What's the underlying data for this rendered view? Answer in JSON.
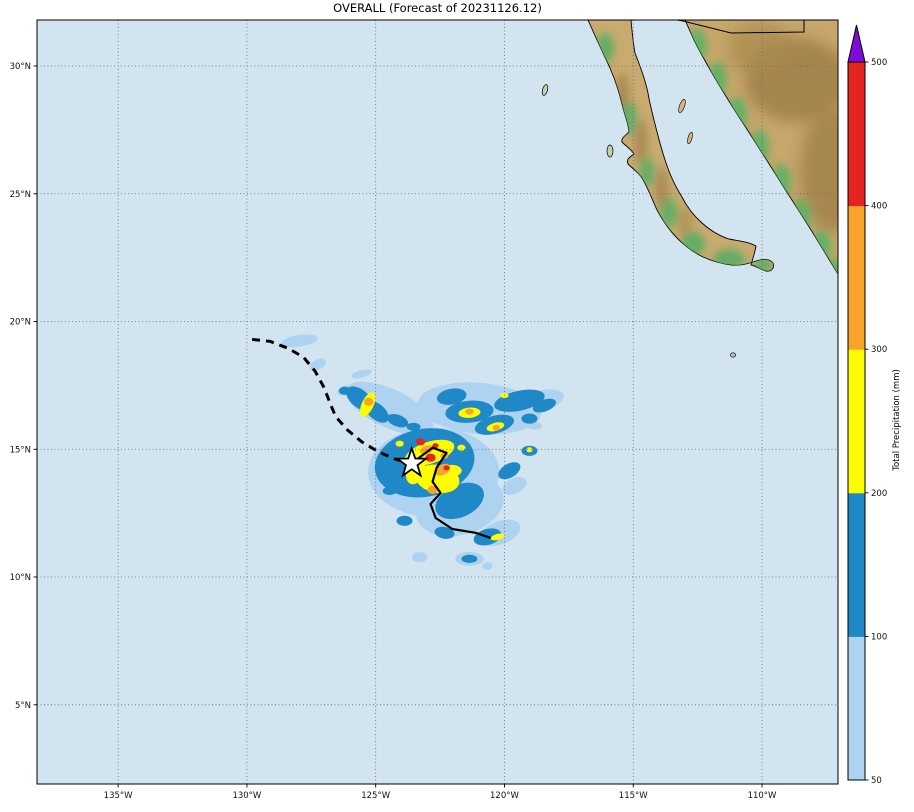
{
  "title": "OVERALL (Forecast of 20231126.12)",
  "colorbar": {
    "label": "Total Precipitation (mm)",
    "ticks": [
      "50",
      "100",
      "200",
      "300",
      "400",
      "500"
    ],
    "levels": [
      {
        "min": 50,
        "max": 100,
        "color": "#aed3f1"
      },
      {
        "min": 100,
        "max": 200,
        "color": "#1f88c7"
      },
      {
        "min": 200,
        "max": 300,
        "color": "#fdfd00"
      },
      {
        "min": 300,
        "max": 400,
        "color": "#f8a42b"
      },
      {
        "min": 400,
        "max": 500,
        "color": "#e52420"
      }
    ],
    "over_color": "#7e0cd8"
  },
  "chart_data": {
    "type": "map",
    "title": "OVERALL (Forecast of 20231126.12)",
    "projection": "lat/lon grid, eastern Pacific / Mexico",
    "extent": {
      "lon_min": -138.15,
      "lon_max": -107.05,
      "lat_min": 1.9,
      "lat_max": 31.8
    },
    "x_ticks": [
      {
        "lon": -135,
        "label": "135°W"
      },
      {
        "lon": -130,
        "label": "130°W"
      },
      {
        "lon": -125,
        "label": "125°W"
      },
      {
        "lon": -120,
        "label": "120°W"
      },
      {
        "lon": -115,
        "label": "115°W"
      },
      {
        "lon": -110,
        "label": "110°W"
      }
    ],
    "y_ticks": [
      {
        "lat": 5,
        "label": "5°N"
      },
      {
        "lat": 10,
        "label": "10°N"
      },
      {
        "lat": 15,
        "label": "15°N"
      },
      {
        "lat": 20,
        "label": "20°N"
      },
      {
        "lat": 25,
        "label": "25°N"
      },
      {
        "lat": 30,
        "label": "30°N"
      }
    ],
    "colorbar_title": "Total Precipitation (mm)",
    "precip_scale_mm": [
      50,
      100,
      200,
      300,
      400,
      500
    ],
    "storm": {
      "current_position": {
        "lon": -123.6,
        "lat": 14.45,
        "marker": "star"
      },
      "observed_track_dashed": [
        [
          -129.8,
          19.3
        ],
        [
          -129.1,
          19.22
        ],
        [
          -128.4,
          18.95
        ],
        [
          -127.8,
          18.6
        ],
        [
          -127.35,
          18.05
        ],
        [
          -127.0,
          17.4
        ],
        [
          -126.75,
          16.75
        ],
        [
          -126.55,
          16.27
        ],
        [
          -126.1,
          15.76
        ],
        [
          -125.55,
          15.3
        ],
        [
          -124.9,
          14.9
        ],
        [
          -124.2,
          14.6
        ],
        [
          -123.6,
          14.45
        ]
      ],
      "forecast_track_solid": [
        [
          -123.6,
          14.45
        ],
        [
          -122.79,
          15.06
        ],
        [
          -122.25,
          14.86
        ],
        [
          -122.64,
          14.27
        ],
        [
          -122.79,
          13.73
        ],
        [
          -122.48,
          13.29
        ],
        [
          -122.87,
          12.86
        ],
        [
          -122.67,
          12.31
        ],
        [
          -122.02,
          11.88
        ],
        [
          -121.12,
          11.73
        ],
        [
          -120.54,
          11.53
        ]
      ]
    },
    "precip_blobs": [
      {
        "level": 50,
        "lon": -127.95,
        "lat": 19.25,
        "rx": 0.7,
        "ry": 0.23,
        "rot": -8
      },
      {
        "level": 50,
        "lon": -127.25,
        "lat": 18.31,
        "rx": 0.35,
        "ry": 0.2,
        "rot": -30
      },
      {
        "level": 50,
        "lon": -125.55,
        "lat": 17.95,
        "rx": 0.4,
        "ry": 0.15,
        "rot": -15
      },
      {
        "level": 50,
        "lon": -126.2,
        "lat": 17.3,
        "rx": 0.3,
        "ry": 0.18,
        "rot": -20
      },
      {
        "level": 50,
        "lon": -124.46,
        "lat": 16.6,
        "rx": 1.85,
        "ry": 0.75,
        "rot": 25
      },
      {
        "level": 50,
        "lon": -120.97,
        "lat": 16.6,
        "rx": 2.4,
        "ry": 1.0,
        "rot": 5
      },
      {
        "level": 50,
        "lon": -118.53,
        "lat": 16.9,
        "rx": 0.85,
        "ry": 0.4,
        "rot": -15
      },
      {
        "level": 50,
        "lon": -118.84,
        "lat": 15.92,
        "rx": 0.3,
        "ry": 0.15,
        "rot": 0
      },
      {
        "level": 50,
        "lon": -122.75,
        "lat": 14.1,
        "rx": 2.55,
        "ry": 1.75,
        "rot": 0
      },
      {
        "level": 50,
        "lon": -121.74,
        "lat": 12.8,
        "rx": 1.75,
        "ry": 1.15,
        "rot": -15
      },
      {
        "level": 50,
        "lon": -119.61,
        "lat": 13.57,
        "rx": 0.5,
        "ry": 0.3,
        "rot": -25
      },
      {
        "level": 50,
        "lon": -120.19,
        "lat": 11.73,
        "rx": 0.85,
        "ry": 0.45,
        "rot": -20
      },
      {
        "level": 50,
        "lon": -121.36,
        "lat": 10.71,
        "rx": 0.55,
        "ry": 0.27,
        "rot": 0
      },
      {
        "level": 50,
        "lon": -123.29,
        "lat": 10.78,
        "rx": 0.3,
        "ry": 0.2,
        "rot": 0
      },
      {
        "level": 50,
        "lon": -120.66,
        "lat": 10.43,
        "rx": 0.2,
        "ry": 0.15,
        "rot": 0
      },
      {
        "level": 100,
        "lon": -125.62,
        "lat": 16.98,
        "rx": 0.62,
        "ry": 0.35,
        "rot": 40
      },
      {
        "level": 100,
        "lon": -124.96,
        "lat": 16.47,
        "rx": 0.55,
        "ry": 0.31,
        "rot": 40
      },
      {
        "level": 100,
        "lon": -124.15,
        "lat": 16.12,
        "rx": 0.43,
        "ry": 0.23,
        "rot": 20
      },
      {
        "level": 100,
        "lon": -123.53,
        "lat": 15.88,
        "rx": 0.27,
        "ry": 0.16,
        "rot": 0
      },
      {
        "level": 100,
        "lon": -126.2,
        "lat": 17.29,
        "rx": 0.23,
        "ry": 0.16,
        "rot": 0
      },
      {
        "level": 100,
        "lon": -122.05,
        "lat": 17.06,
        "rx": 0.58,
        "ry": 0.31,
        "rot": -10
      },
      {
        "level": 100,
        "lon": -121.36,
        "lat": 16.47,
        "rx": 0.94,
        "ry": 0.43,
        "rot": -5
      },
      {
        "level": 100,
        "lon": -120.39,
        "lat": 15.96,
        "rx": 0.78,
        "ry": 0.35,
        "rot": -15
      },
      {
        "level": 100,
        "lon": -119.42,
        "lat": 16.9,
        "rx": 1.0,
        "ry": 0.39,
        "rot": -12
      },
      {
        "level": 100,
        "lon": -118.45,
        "lat": 16.71,
        "rx": 0.47,
        "ry": 0.23,
        "rot": -20
      },
      {
        "level": 100,
        "lon": -119.03,
        "lat": 16.2,
        "rx": 0.31,
        "ry": 0.2,
        "rot": 0
      },
      {
        "level": 100,
        "lon": -123.1,
        "lat": 14.47,
        "rx": 1.95,
        "ry": 1.33,
        "rot": -10
      },
      {
        "level": 100,
        "lon": -121.74,
        "lat": 12.98,
        "rx": 1.0,
        "ry": 0.63,
        "rot": -25
      },
      {
        "level": 100,
        "lon": -120.66,
        "lat": 11.57,
        "rx": 0.55,
        "ry": 0.31,
        "rot": -15
      },
      {
        "level": 100,
        "lon": -121.36,
        "lat": 10.71,
        "rx": 0.31,
        "ry": 0.16,
        "rot": 0
      },
      {
        "level": 100,
        "lon": -122.33,
        "lat": 11.73,
        "rx": 0.39,
        "ry": 0.23,
        "rot": 10
      },
      {
        "level": 100,
        "lon": -123.88,
        "lat": 12.2,
        "rx": 0.31,
        "ry": 0.2,
        "rot": 0
      },
      {
        "level": 100,
        "lon": -124.46,
        "lat": 13.37,
        "rx": 0.27,
        "ry": 0.16,
        "rot": 0
      },
      {
        "level": 100,
        "lon": -119.81,
        "lat": 14.16,
        "rx": 0.47,
        "ry": 0.27,
        "rot": -30
      },
      {
        "level": 100,
        "lon": -119.03,
        "lat": 14.94,
        "rx": 0.31,
        "ry": 0.2,
        "rot": 0
      },
      {
        "level": 200,
        "lon": -125.31,
        "lat": 16.75,
        "rx": 0.23,
        "ry": 0.51,
        "rot": 25
      },
      {
        "level": 200,
        "lon": -121.36,
        "lat": 16.43,
        "rx": 0.43,
        "ry": 0.2,
        "rot": -5
      },
      {
        "level": 200,
        "lon": -120.35,
        "lat": 15.88,
        "rx": 0.35,
        "ry": 0.16,
        "rot": -15
      },
      {
        "level": 200,
        "lon": -120.0,
        "lat": 17.1,
        "rx": 0.16,
        "ry": 0.1,
        "rot": 0
      },
      {
        "level": 200,
        "lon": -122.91,
        "lat": 14.86,
        "rx": 1.0,
        "ry": 0.43,
        "rot": -18
      },
      {
        "level": 200,
        "lon": -122.6,
        "lat": 13.84,
        "rx": 0.86,
        "ry": 0.55,
        "rot": 10
      },
      {
        "level": 200,
        "lon": -123.45,
        "lat": 14.16,
        "rx": 0.35,
        "ry": 0.55,
        "rot": 20
      },
      {
        "level": 200,
        "lon": -122.05,
        "lat": 14.16,
        "rx": 0.39,
        "ry": 0.23,
        "rot": 0
      },
      {
        "level": 200,
        "lon": -124.07,
        "lat": 15.22,
        "rx": 0.16,
        "ry": 0.12,
        "rot": 0
      },
      {
        "level": 200,
        "lon": -121.67,
        "lat": 15.06,
        "rx": 0.16,
        "ry": 0.12,
        "rot": 0
      },
      {
        "level": 200,
        "lon": -119.03,
        "lat": 14.98,
        "rx": 0.12,
        "ry": 0.1,
        "rot": 0
      },
      {
        "level": 200,
        "lon": -120.27,
        "lat": 11.57,
        "rx": 0.27,
        "ry": 0.12,
        "rot": -15
      },
      {
        "level": 300,
        "lon": -125.27,
        "lat": 16.86,
        "rx": 0.18,
        "ry": 0.16,
        "rot": 0
      },
      {
        "level": 300,
        "lon": -121.36,
        "lat": 16.47,
        "rx": 0.16,
        "ry": 0.12,
        "rot": 0
      },
      {
        "level": 300,
        "lon": -120.31,
        "lat": 15.84,
        "rx": 0.14,
        "ry": 0.12,
        "rot": 0
      },
      {
        "level": 300,
        "lon": -123.02,
        "lat": 14.98,
        "rx": 0.27,
        "ry": 0.16,
        "rot": -20
      },
      {
        "level": 300,
        "lon": -122.4,
        "lat": 14.2,
        "rx": 0.31,
        "ry": 0.2,
        "rot": -30
      },
      {
        "level": 300,
        "lon": -122.79,
        "lat": 13.41,
        "rx": 0.2,
        "ry": 0.16,
        "rot": 0
      },
      {
        "level": 300,
        "lon": -122.33,
        "lat": 14.75,
        "rx": 0.16,
        "ry": 0.12,
        "rot": 0
      },
      {
        "level": 400,
        "lon": -123.26,
        "lat": 15.29,
        "rx": 0.18,
        "ry": 0.14,
        "rot": 0
      },
      {
        "level": 400,
        "lon": -122.87,
        "lat": 14.67,
        "rx": 0.2,
        "ry": 0.16,
        "rot": 0
      },
      {
        "level": 400,
        "lon": -122.25,
        "lat": 14.27,
        "rx": 0.12,
        "ry": 0.1,
        "rot": 0
      },
      {
        "level": 400,
        "lon": -122.68,
        "lat": 15.14,
        "rx": 0.12,
        "ry": 0.1,
        "rot": 0
      }
    ]
  }
}
